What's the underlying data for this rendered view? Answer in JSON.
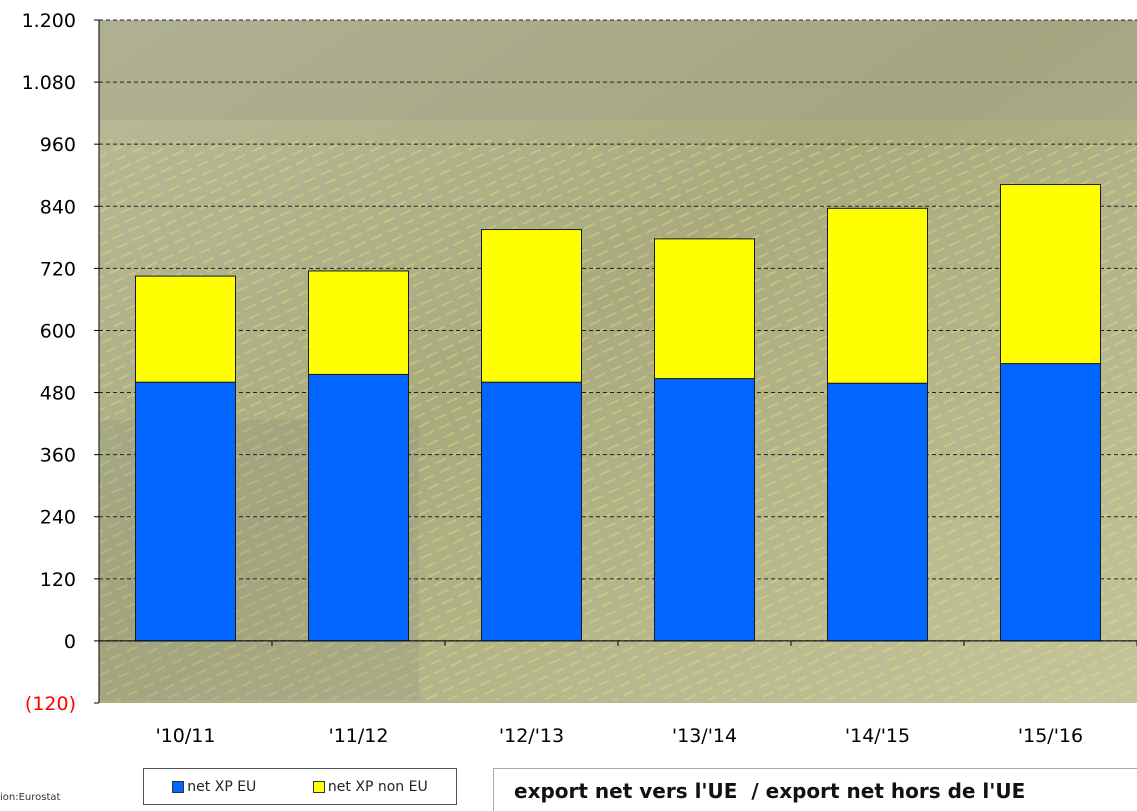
{
  "chart_data": {
    "type": "bar",
    "stacked": true,
    "categories": [
      "'10/11",
      "'11/12",
      "'12/'13",
      "'13/'14",
      "'14/'15",
      "'15/'16"
    ],
    "series": [
      {
        "name": "net XP EU",
        "color": "#0066FF",
        "values": [
          500,
          515,
          500,
          507,
          498,
          536
        ]
      },
      {
        "name": "net XP non EU",
        "color": "#FFFF00",
        "values": [
          205,
          200,
          295,
          270,
          338,
          346
        ]
      }
    ],
    "ylim": [
      -120,
      1200
    ],
    "yticks": [
      -120,
      0,
      120,
      240,
      360,
      480,
      600,
      720,
      840,
      960,
      1080,
      1200
    ],
    "ytick_labels": [
      "(120)",
      "0",
      "120",
      "240",
      "360",
      "480",
      "600",
      "720",
      "840",
      "960",
      "1.080",
      "1.200"
    ],
    "negative_tick_color": "#FF0000",
    "grid": "dashed horizontal",
    "legend_placement": "bottom-left"
  },
  "caption": "export net vers l'UE  / export net hors de l'UE",
  "source": "ion:Eurostat"
}
